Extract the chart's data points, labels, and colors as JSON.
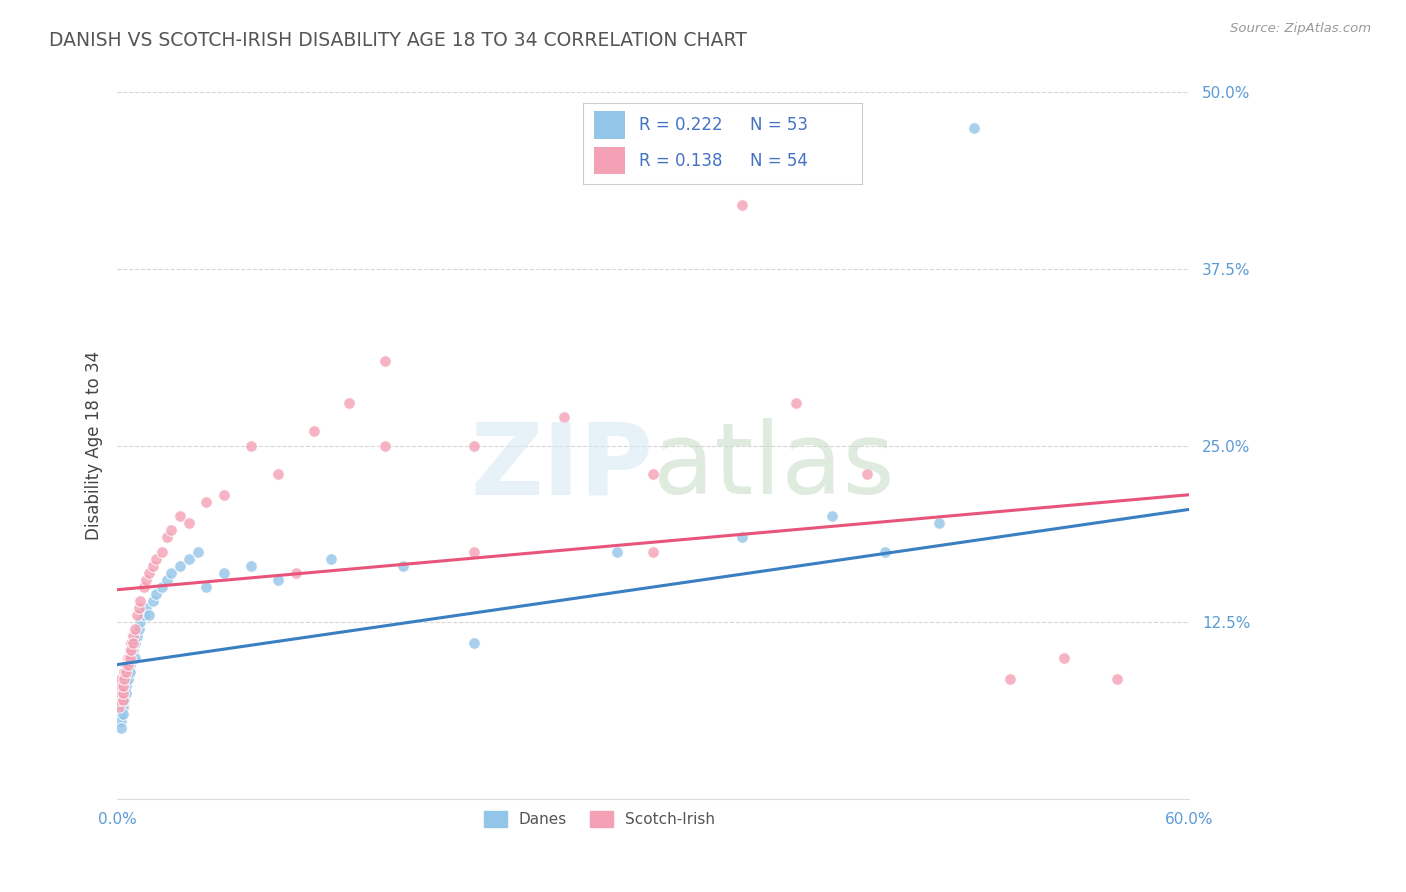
{
  "title": "DANISH VS SCOTCH-IRISH DISABILITY AGE 18 TO 34 CORRELATION CHART",
  "source": "Source: ZipAtlas.com",
  "ylabel": "Disability Age 18 to 34",
  "xlim": [
    0.0,
    0.6
  ],
  "ylim": [
    0.0,
    0.5
  ],
  "xticks": [
    0.0,
    0.1,
    0.2,
    0.3,
    0.4,
    0.5,
    0.6
  ],
  "xticklabels": [
    "0.0%",
    "",
    "",
    "",
    "",
    "",
    "60.0%"
  ],
  "yticks": [
    0.0,
    0.125,
    0.25,
    0.375,
    0.5
  ],
  "yticklabels": [
    "",
    "12.5%",
    "25.0%",
    "37.5%",
    "50.0%"
  ],
  "danes_R": 0.222,
  "danes_N": 53,
  "scotch_R": 0.138,
  "scotch_N": 54,
  "danes_color": "#92C5E8",
  "scotch_color": "#F4A0B5",
  "danes_line_color": "#3A7FC1",
  "scotch_line_color": "#E8557A",
  "background_color": "#FFFFFF",
  "grid_color": "#CCCCCC",
  "title_color": "#555555",
  "axis_label_color": "#444444",
  "tick_color": "#5B9BD5",
  "legend_R_color": "#4472C4",
  "danes_x": [
    0.001,
    0.001,
    0.001,
    0.002,
    0.002,
    0.002,
    0.002,
    0.002,
    0.003,
    0.003,
    0.003,
    0.003,
    0.004,
    0.004,
    0.004,
    0.005,
    0.005,
    0.005,
    0.006,
    0.006,
    0.007,
    0.007,
    0.008,
    0.009,
    0.01,
    0.01,
    0.011,
    0.012,
    0.013,
    0.015,
    0.016,
    0.018,
    0.02,
    0.022,
    0.025,
    0.028,
    0.03,
    0.035,
    0.04,
    0.045,
    0.05,
    0.06,
    0.075,
    0.09,
    0.12,
    0.16,
    0.2,
    0.28,
    0.35,
    0.4,
    0.43,
    0.46,
    0.48
  ],
  "danes_y": [
    0.06,
    0.065,
    0.07,
    0.075,
    0.08,
    0.06,
    0.055,
    0.05,
    0.07,
    0.075,
    0.065,
    0.06,
    0.08,
    0.075,
    0.07,
    0.085,
    0.08,
    0.075,
    0.09,
    0.085,
    0.095,
    0.09,
    0.1,
    0.105,
    0.11,
    0.1,
    0.115,
    0.12,
    0.125,
    0.13,
    0.135,
    0.13,
    0.14,
    0.145,
    0.15,
    0.155,
    0.16,
    0.165,
    0.17,
    0.175,
    0.15,
    0.16,
    0.165,
    0.155,
    0.17,
    0.165,
    0.11,
    0.175,
    0.185,
    0.2,
    0.175,
    0.195,
    0.475
  ],
  "scotch_x": [
    0.001,
    0.001,
    0.002,
    0.002,
    0.002,
    0.003,
    0.003,
    0.003,
    0.004,
    0.004,
    0.005,
    0.005,
    0.006,
    0.006,
    0.007,
    0.007,
    0.008,
    0.008,
    0.009,
    0.009,
    0.01,
    0.011,
    0.012,
    0.013,
    0.015,
    0.016,
    0.018,
    0.02,
    0.022,
    0.025,
    0.028,
    0.03,
    0.035,
    0.04,
    0.05,
    0.06,
    0.075,
    0.09,
    0.11,
    0.13,
    0.15,
    0.2,
    0.25,
    0.3,
    0.35,
    0.38,
    0.42,
    0.5,
    0.53,
    0.56,
    0.3,
    0.2,
    0.15,
    0.1
  ],
  "scotch_y": [
    0.065,
    0.07,
    0.075,
    0.08,
    0.085,
    0.07,
    0.075,
    0.08,
    0.09,
    0.085,
    0.095,
    0.09,
    0.1,
    0.095,
    0.105,
    0.1,
    0.11,
    0.105,
    0.115,
    0.11,
    0.12,
    0.13,
    0.135,
    0.14,
    0.15,
    0.155,
    0.16,
    0.165,
    0.17,
    0.175,
    0.185,
    0.19,
    0.2,
    0.195,
    0.21,
    0.215,
    0.25,
    0.23,
    0.26,
    0.28,
    0.31,
    0.25,
    0.27,
    0.23,
    0.42,
    0.28,
    0.23,
    0.085,
    0.1,
    0.085,
    0.175,
    0.175,
    0.25,
    0.16
  ]
}
